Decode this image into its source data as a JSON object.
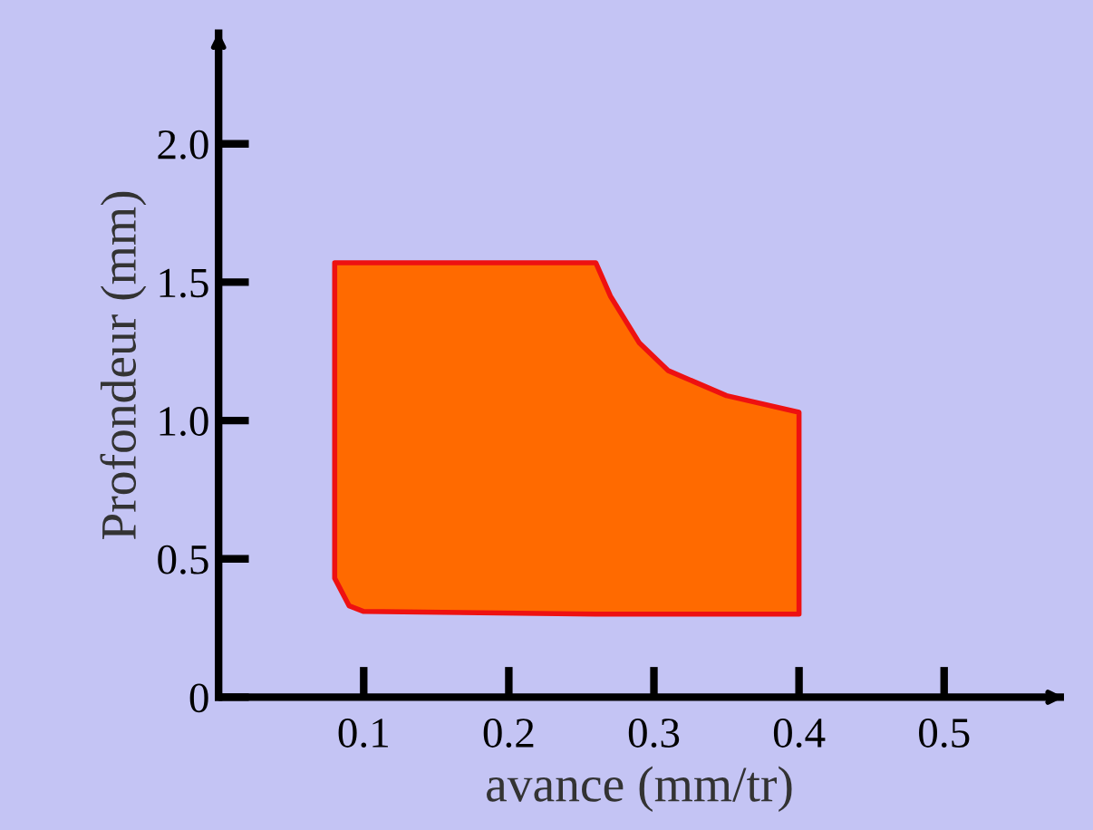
{
  "chart_data": {
    "type": "area",
    "xlabel": "avance (mm/tr)",
    "ylabel": "Profondeur (mm)",
    "x": [
      0.08,
      0.26,
      0.27,
      0.29,
      0.31,
      0.35,
      0.4,
      0.4,
      0.26,
      0.1,
      0.09,
      0.08
    ],
    "series": [
      {
        "color": "#ff6a00",
        "values": [
          1.57,
          1.57,
          1.45,
          1.28,
          1.18,
          1.09,
          1.03,
          0.3,
          0.3,
          0.31,
          0.33,
          0.43
        ]
      }
    ],
    "xlim": [
      0,
      0.58
    ],
    "ylim": [
      0,
      2.4
    ],
    "xticks": [
      0.1,
      0.2,
      0.3,
      0.4,
      0.5
    ],
    "yticks": [
      {
        "value": 0,
        "label": "0"
      },
      0.5,
      {
        "value": 1.0,
        "label": "1.0"
      },
      1.5,
      {
        "value": 2.0,
        "label": "2.0"
      }
    ],
    "grid": false,
    "legend": false
  }
}
